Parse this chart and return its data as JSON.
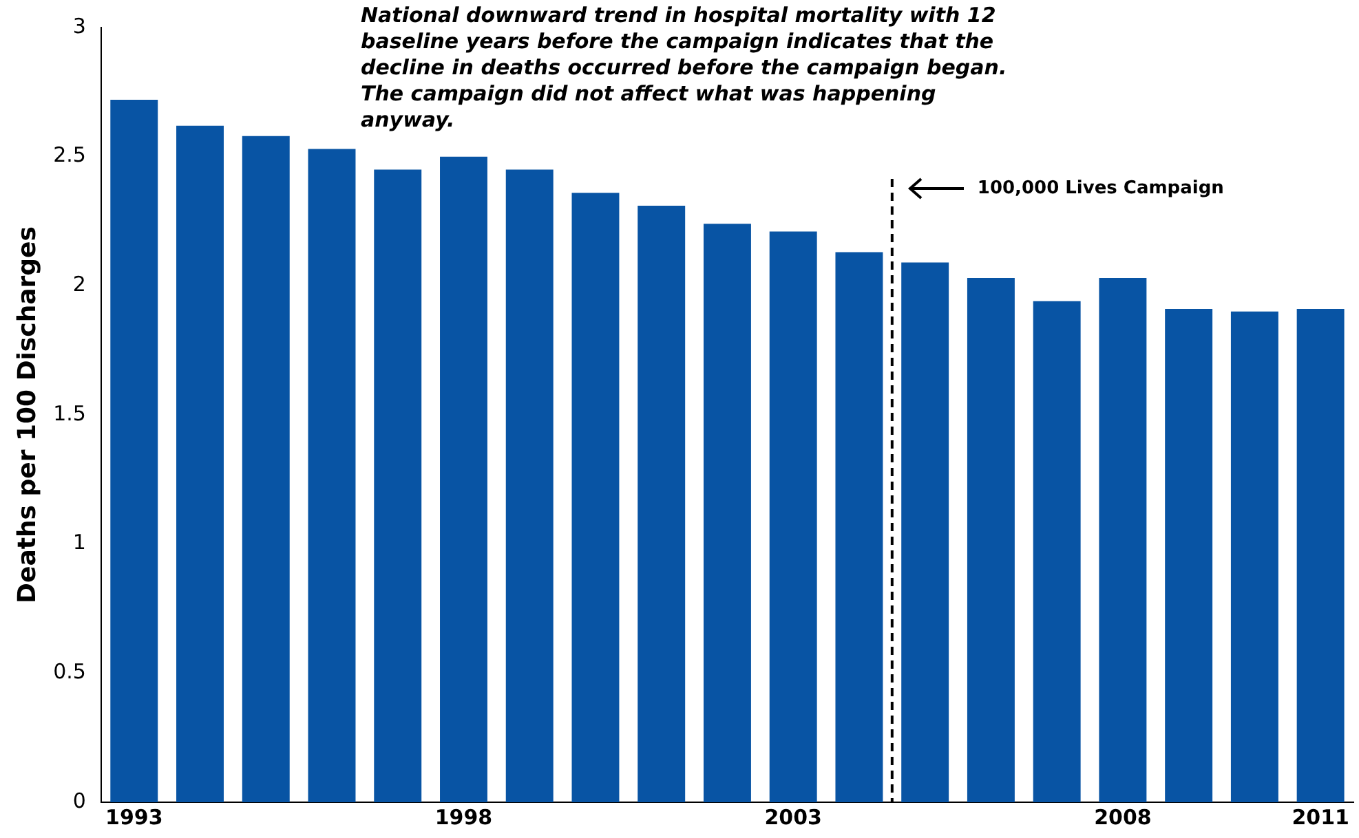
{
  "chart_data": {
    "type": "bar",
    "x": [
      1993,
      1994,
      1995,
      1996,
      1997,
      1998,
      1999,
      2000,
      2001,
      2002,
      2003,
      2004,
      2005,
      2006,
      2007,
      2008,
      2009,
      2010,
      2011
    ],
    "values": [
      2.72,
      2.62,
      2.58,
      2.53,
      2.45,
      2.5,
      2.45,
      2.36,
      2.31,
      2.24,
      2.21,
      2.13,
      2.09,
      2.03,
      1.94,
      2.03,
      1.91,
      1.9,
      1.91
    ],
    "color": "#0854a4",
    "xlim": [
      1992.5,
      2011.5
    ],
    "xticks": [
      1993,
      1998,
      2003,
      2008,
      2011
    ],
    "ylim": [
      0,
      3
    ],
    "yticks": [
      0,
      0.5,
      1,
      1.5,
      2,
      2.5,
      3
    ],
    "ylabel": "Deaths per 100 Discharges",
    "ref_lines": [
      {
        "axis": "x",
        "value": 2004.5,
        "label": "100,000 Lives Campaign",
        "color": "#000000",
        "line_style": "dashed"
      }
    ],
    "annotations": [
      "National downward trend in hospital mortality with 12 baseline years before the campaign indicates that the decline in deaths occurred before the campaign began. The campaign did not affect what was happening anyway."
    ],
    "grid": false,
    "legend": false
  }
}
